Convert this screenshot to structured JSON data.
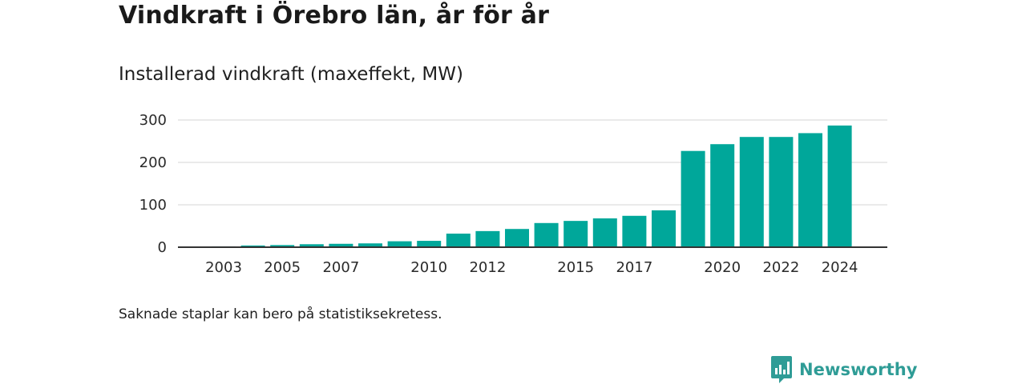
{
  "title": "Vindkraft i Örebro län, år för år",
  "subtitle": "Installerad vindkraft (maxeffekt, MW)",
  "note": "Saknade staplar kan bero på statistiksekretess.",
  "brand": {
    "name": "Newsworthy",
    "color": "#2f9c96",
    "icon": "newsworthy-logo-icon"
  },
  "chart_data": {
    "type": "bar",
    "bar_color": "#00a79a",
    "grid": true,
    "ylim": [
      0,
      300
    ],
    "yticks": [
      0,
      100,
      200,
      300
    ],
    "categories": [
      "2003",
      "2004",
      "2005",
      "2006",
      "2007",
      "2008",
      "2009",
      "2010",
      "2011",
      "2012",
      "2013",
      "2014",
      "2015",
      "2016",
      "2017",
      "2018",
      "2019",
      "2020",
      "2021",
      "2022",
      "2023",
      "2024"
    ],
    "xtick_labels": [
      "2003",
      "2005",
      "2007",
      "2010",
      "2012",
      "2015",
      "2017",
      "2020",
      "2022",
      "2024"
    ],
    "values": [
      2,
      4,
      5,
      7,
      8,
      9,
      14,
      15,
      32,
      38,
      43,
      57,
      62,
      68,
      74,
      87,
      227,
      243,
      260,
      260,
      269,
      287
    ]
  }
}
